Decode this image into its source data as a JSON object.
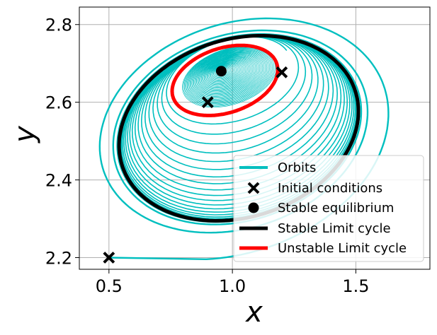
{
  "chart_data": {
    "type": "line",
    "xlabel": "x",
    "ylabel": "y",
    "xlim": [
      0.38,
      1.8
    ],
    "ylim": [
      2.17,
      2.845
    ],
    "xticks": [
      0.5,
      1.0,
      1.5
    ],
    "yticks": [
      2.2,
      2.4,
      2.6,
      2.8
    ],
    "xtick_labels": [
      "0.5",
      "1.0",
      "1.5"
    ],
    "ytick_labels": [
      "2.2",
      "2.4",
      "2.6",
      "2.8"
    ],
    "grid": true,
    "legend_position": "lower-right",
    "colors": {
      "orbits": "#00bfbf",
      "stable_cycle": "#000000",
      "unstable_cycle": "#ff0000",
      "markers": "#000000"
    },
    "series": [
      {
        "name": "Orbits",
        "kind": "line"
      },
      {
        "name": "Initial conditions",
        "kind": "marker-x"
      },
      {
        "name": "Stable equilibrium",
        "kind": "marker-dot"
      },
      {
        "name": "Stable Limit cycle",
        "kind": "line"
      },
      {
        "name": "Unstable Limit cycle",
        "kind": "line"
      }
    ],
    "initial_conditions": [
      {
        "x": 0.5,
        "y": 2.2
      },
      {
        "x": 0.9,
        "y": 2.6
      },
      {
        "x": 1.2,
        "y": 2.677
      }
    ],
    "stable_equilibrium": {
      "x": 0.955,
      "y": 2.68
    },
    "stable_limit_cycle": {
      "center_x": 1.07,
      "center_y": 2.555,
      "x_min": 0.48,
      "x_max": 1.58,
      "y_min": 2.305,
      "y_max": 2.8
    },
    "unstable_limit_cycle": {
      "center_x": 0.99,
      "center_y": 2.665,
      "x_min": 0.75,
      "x_max": 1.24,
      "y_min": 2.57,
      "y_max": 2.75
    }
  }
}
